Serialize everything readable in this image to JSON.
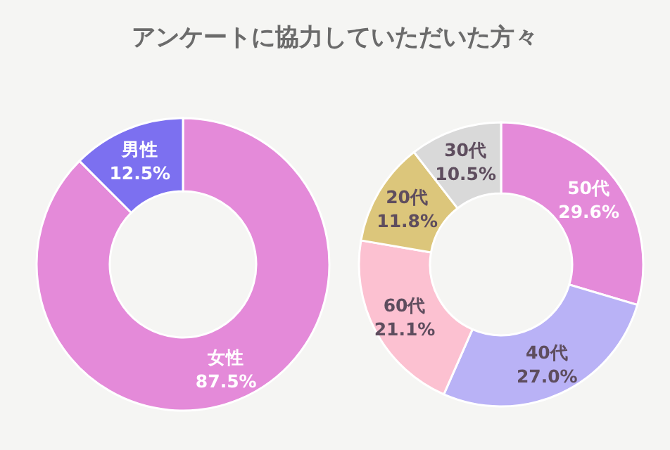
{
  "chart_data": [
    {
      "type": "donut",
      "title": "アンケートに協力していただいた方々",
      "categories": [
        "女性",
        "男性"
      ],
      "values": [
        87.5,
        12.5
      ],
      "colors": [
        "#e48ad9",
        "#7c70f0"
      ],
      "value_labels": [
        "87.5%",
        "12.5%"
      ]
    },
    {
      "type": "donut",
      "categories": [
        "50代",
        "40代",
        "60代",
        "20代",
        "30代"
      ],
      "values": [
        29.6,
        27.0,
        21.1,
        11.8,
        10.5
      ],
      "colors": [
        "#e48ad9",
        "#b9b2f6",
        "#fcc1d1",
        "#dcc67b",
        "#d9d9d9"
      ],
      "value_labels": [
        "29.6%",
        "27.0%",
        "21.1%",
        "11.8%",
        "10.5%"
      ]
    }
  ]
}
